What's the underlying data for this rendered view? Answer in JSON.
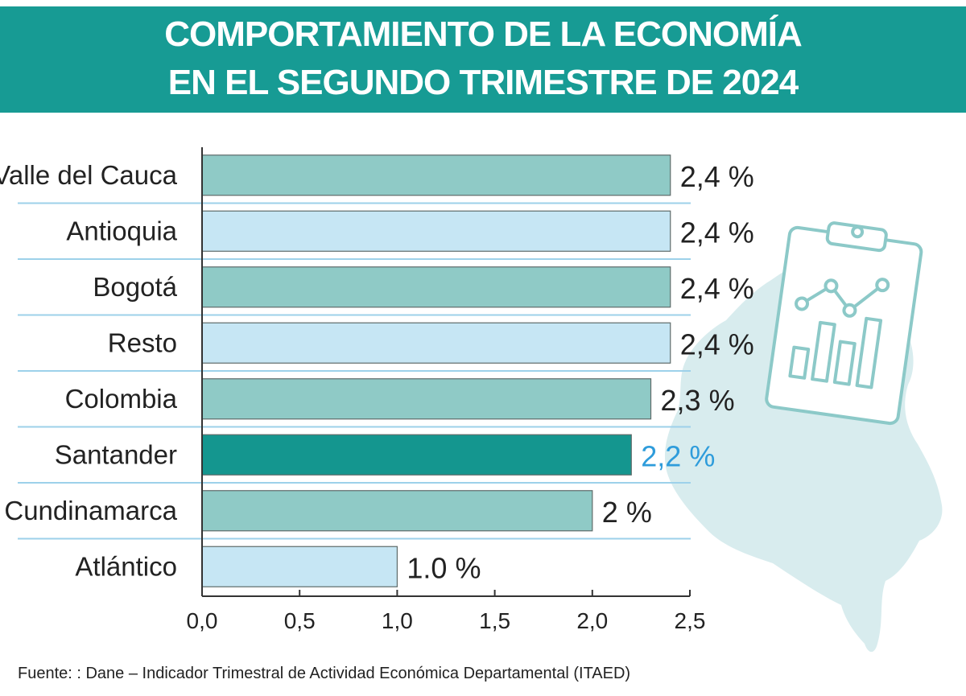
{
  "title_lines": [
    "COMPORTAMIENTO DE LA ECONOMÍA",
    "EN EL SEGUNDO TRIMESTRE DE 2024"
  ],
  "source": "Fuente: : Dane – Indicador Trimestral de Actividad Económica Departamental (ITAED)",
  "colors": {
    "header": "#179b94",
    "bar_teal": "#8fcac6",
    "bar_light": "#c6e6f4",
    "bar_highlight": "#14968f",
    "highlight_label": "#2e9cdb",
    "label": "#222222",
    "separator": "#9dd1ea",
    "map": "#d8ecee",
    "clipboard": "#8cc9c8"
  },
  "icons": [
    "colombia-map-icon",
    "clipboard-chart-icon"
  ],
  "chart_data": {
    "type": "bar",
    "orientation": "horizontal",
    "title": "COMPORTAMIENTO DE LA ECONOMÍA EN EL SEGUNDO TRIMESTRE DE 2024",
    "categories": [
      "Valle del Cauca",
      "Antioquia",
      "Bogotá",
      "Resto",
      "Colombia",
      "Santander",
      "Cundinamarca",
      "Atlántico"
    ],
    "values": [
      2.4,
      2.4,
      2.4,
      2.4,
      2.3,
      2.2,
      2.0,
      1.0
    ],
    "value_labels": [
      "2,4 %",
      "2,4 %",
      "2,4 %",
      "2,4 %",
      "2,3 %",
      "2,2 %",
      "2 %",
      "1.0 %"
    ],
    "bar_styles": [
      "teal",
      "light",
      "teal",
      "light",
      "teal",
      "highlight",
      "teal",
      "light"
    ],
    "highlight": "Santander",
    "xlim": [
      0,
      2.5
    ],
    "ticks": [
      0,
      0.5,
      1.0,
      1.5,
      2.0,
      2.5
    ],
    "tick_labels": [
      "0,0",
      "0,5",
      "1,0",
      "1,5",
      "2,0",
      "2,5"
    ],
    "xlabel": "",
    "ylabel": "",
    "grid": false,
    "legend": "none"
  }
}
